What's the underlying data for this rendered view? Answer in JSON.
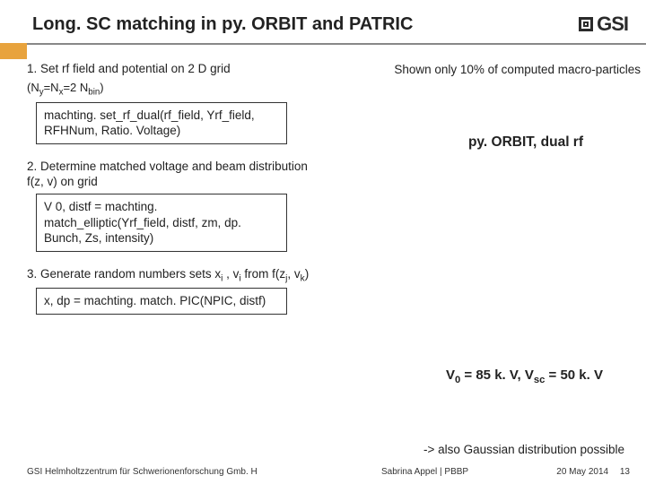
{
  "title": "Long. SC matching in py. ORBIT and PATRIC",
  "accent_color": "#e8a33d",
  "logo_text": "GSI",
  "steps": {
    "s1_label": "1. Set rf field and potential on 2 D grid",
    "s1_sub_html": "(N<sub>y</sub>=N<sub>x</sub>=2 N<sub>bin</sub>)",
    "s1_code": "machting. set_rf_dual(rf_field, Yrf_field, RFHNum, Ratio. Voltage)",
    "s2_label": "2. Determine matched voltage and beam distribution f(z, v) on grid",
    "s2_code": "V 0, distf = machting. match_elliptic(Yrf_field, distf, zm, dp. Bunch, Zs, intensity)",
    "s3_label_html": "3. Generate random numbers sets x<sub>i</sub> , v<sub>i</sub> from f(z<sub>j</sub>, v<sub>k</sub>)",
    "s3_code": "x, dp = machting. match. PIC(NPIC, distf)"
  },
  "right": {
    "top_note": "Shown only 10% of computed macro-particles",
    "mid_label": "py. ORBIT, dual rf",
    "voltage_html": "V<sub>0</sub> = 85 k. V, V<sub>sc</sub> = 50 k. V",
    "gaussian": "-> also Gaussian distribution possible"
  },
  "footer": {
    "left": "GSI Helmholtzzentrum für Schwerionenforschung Gmb. H",
    "center": "Sabrina Appel | PBBP",
    "date": "20 May 2014",
    "page": "13"
  }
}
